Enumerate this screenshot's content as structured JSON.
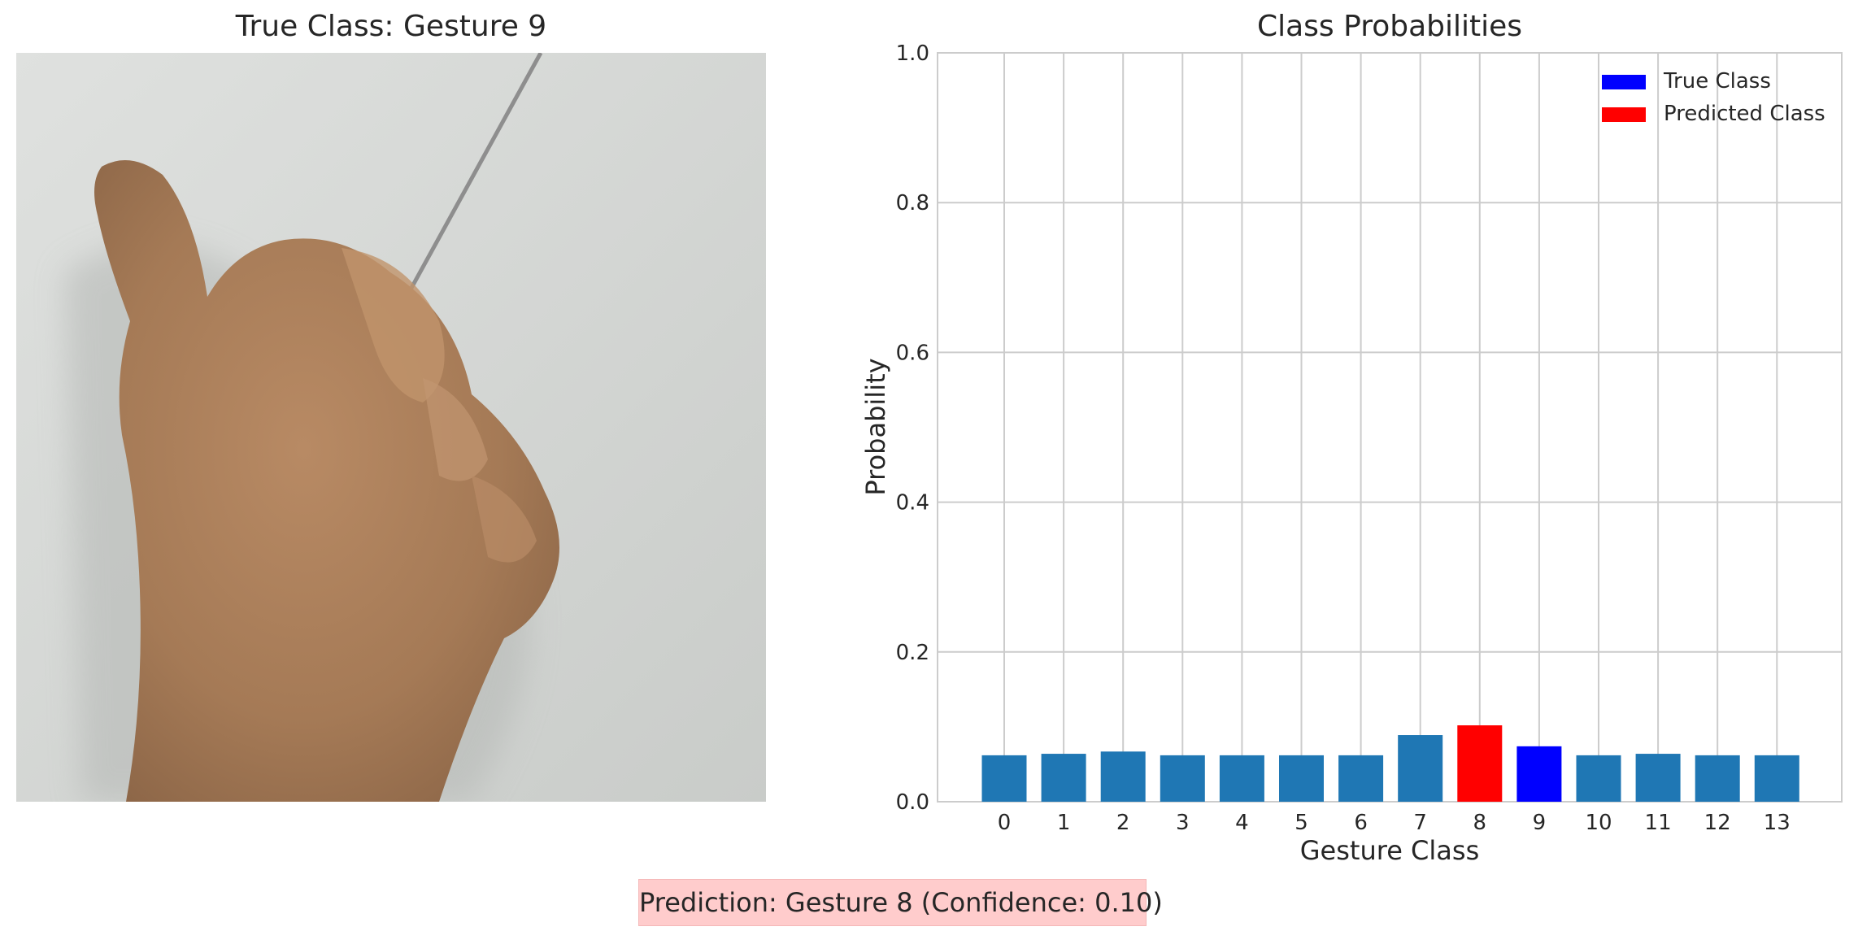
{
  "left_panel": {
    "title": "True Class: Gesture 9",
    "image_description_icon": "hand-photo"
  },
  "chart_data": {
    "type": "bar",
    "title": "Class Probabilities",
    "xlabel": "Gesture Class",
    "ylabel": "Probability",
    "categories": [
      "0",
      "1",
      "2",
      "3",
      "4",
      "5",
      "6",
      "7",
      "8",
      "9",
      "10",
      "11",
      "12",
      "13"
    ],
    "values": [
      0.062,
      0.064,
      0.067,
      0.062,
      0.062,
      0.062,
      0.062,
      0.089,
      0.102,
      0.074,
      0.062,
      0.064,
      0.062,
      0.062
    ],
    "ylim": [
      0,
      1.0
    ],
    "yticks": [
      "0.0",
      "0.2",
      "0.4",
      "0.6",
      "0.8",
      "1.0"
    ],
    "true_class_index": 9,
    "predicted_class_index": 8,
    "colors": {
      "default": "#1f77b4",
      "true": "#0000ff",
      "predicted": "#ff0000",
      "grid": "#cccccc"
    },
    "legend": {
      "placement": "top-right",
      "items": [
        {
          "label": "True Class",
          "color": "#0000ff"
        },
        {
          "label": "Predicted Class",
          "color": "#ff0000"
        }
      ]
    },
    "grid": true
  },
  "banner": {
    "text": "Prediction: Gesture 8 (Confidence: 0.10)",
    "background": "#ffcccc"
  }
}
